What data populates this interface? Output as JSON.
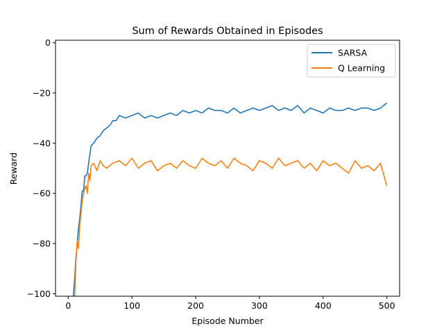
{
  "chart_data": {
    "type": "line",
    "title": "Sum of Rewards Obtained in Episodes",
    "xlabel": "Episode Number",
    "ylabel": "Reward",
    "xlim": [
      -20,
      520
    ],
    "ylim": [
      -101,
      1
    ],
    "xticks": [
      0,
      100,
      200,
      300,
      400,
      500
    ],
    "yticks": [
      0,
      -20,
      -40,
      -60,
      -80,
      -100
    ],
    "xtick_labels": [
      "0",
      "100",
      "200",
      "300",
      "400",
      "500"
    ],
    "ytick_labels": [
      "0",
      "−20",
      "−40",
      "−60",
      "−80",
      "−100"
    ],
    "grid": false,
    "legend_position": "top-right",
    "series": [
      {
        "name": "SARSA",
        "color": "#1f77b4",
        "x": [
          8,
          10,
          12,
          14,
          16,
          18,
          20,
          22,
          24,
          26,
          28,
          30,
          33,
          36,
          40,
          45,
          50,
          55,
          60,
          65,
          70,
          75,
          80,
          90,
          100,
          110,
          120,
          130,
          140,
          150,
          160,
          170,
          180,
          190,
          200,
          210,
          220,
          230,
          240,
          250,
          260,
          270,
          280,
          290,
          300,
          310,
          320,
          330,
          340,
          350,
          360,
          370,
          380,
          390,
          400,
          410,
          420,
          430,
          440,
          450,
          460,
          470,
          480,
          490,
          500
        ],
        "y": [
          -101,
          -94,
          -86,
          -80,
          -74,
          -70,
          -65,
          -59,
          -59,
          -53,
          -53,
          -52,
          -46,
          -41,
          -40,
          -38,
          -37,
          -35,
          -34,
          -33,
          -31,
          -31,
          -29,
          -30,
          -29,
          -28,
          -30,
          -29,
          -30,
          -29,
          -28,
          -29,
          -27,
          -28,
          -27,
          -28,
          -26,
          -27,
          -27,
          -28,
          -26,
          -28,
          -27,
          -26,
          -27,
          -26,
          -25,
          -27,
          -26,
          -27,
          -25,
          -28,
          -26,
          -27,
          -28,
          -26,
          -27,
          -27,
          -26,
          -27,
          -26,
          -26,
          -27,
          -26,
          -24
        ]
      },
      {
        "name": "Q Learning",
        "color": "#ff7f0e",
        "x": [
          10,
          12,
          14,
          16,
          18,
          20,
          22,
          24,
          26,
          28,
          30,
          32,
          34,
          36,
          40,
          45,
          50,
          55,
          60,
          70,
          80,
          90,
          100,
          110,
          120,
          130,
          140,
          150,
          160,
          170,
          180,
          190,
          200,
          210,
          220,
          230,
          240,
          250,
          260,
          270,
          280,
          290,
          300,
          310,
          320,
          330,
          340,
          350,
          360,
          370,
          380,
          390,
          400,
          410,
          420,
          430,
          440,
          450,
          460,
          470,
          480,
          490,
          500
        ],
        "y": [
          -101,
          -88,
          -79,
          -82,
          -73,
          -68,
          -63,
          -60,
          -58,
          -57,
          -60,
          -52,
          -55,
          -49,
          -48,
          -51,
          -47,
          -49,
          -50,
          -48,
          -47,
          -49,
          -46,
          -50,
          -48,
          -47,
          -51,
          -49,
          -48,
          -50,
          -47,
          -49,
          -50,
          -46,
          -48,
          -49,
          -47,
          -50,
          -46,
          -48,
          -49,
          -51,
          -47,
          -48,
          -50,
          -46,
          -49,
          -48,
          -47,
          -50,
          -48,
          -51,
          -47,
          -49,
          -48,
          -50,
          -52,
          -47,
          -50,
          -49,
          -51,
          -48,
          -57
        ]
      }
    ]
  }
}
